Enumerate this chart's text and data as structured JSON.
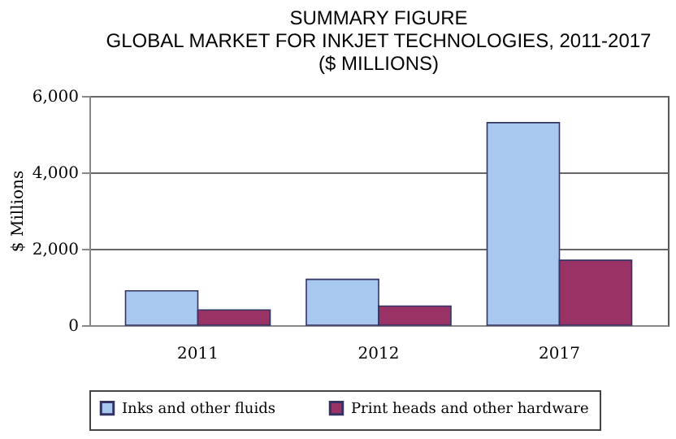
{
  "chart_data": {
    "type": "bar",
    "title": [
      "SUMMARY FIGURE",
      "GLOBAL MARKET FOR INKJET TECHNOLOGIES, 2011-2017",
      "($ MILLIONS)"
    ],
    "ylabel": "$ Millions",
    "categories": [
      "2011",
      "2012",
      "2017"
    ],
    "series": [
      {
        "name": "Inks and other fluids",
        "color": "#a8c8f0",
        "values": [
          900,
          1200,
          5300
        ]
      },
      {
        "name": "Print heads and other hardware",
        "color": "#993366",
        "values": [
          400,
          500,
          1700
        ]
      }
    ],
    "ylim": [
      0,
      6000
    ],
    "yticks": [
      {
        "value": 0,
        "label": "0"
      },
      {
        "value": 2000,
        "label": "2,000"
      },
      {
        "value": 4000,
        "label": "4,000"
      },
      {
        "value": 6000,
        "label": "6,000"
      }
    ],
    "grid": "y",
    "legend": "bottom"
  }
}
